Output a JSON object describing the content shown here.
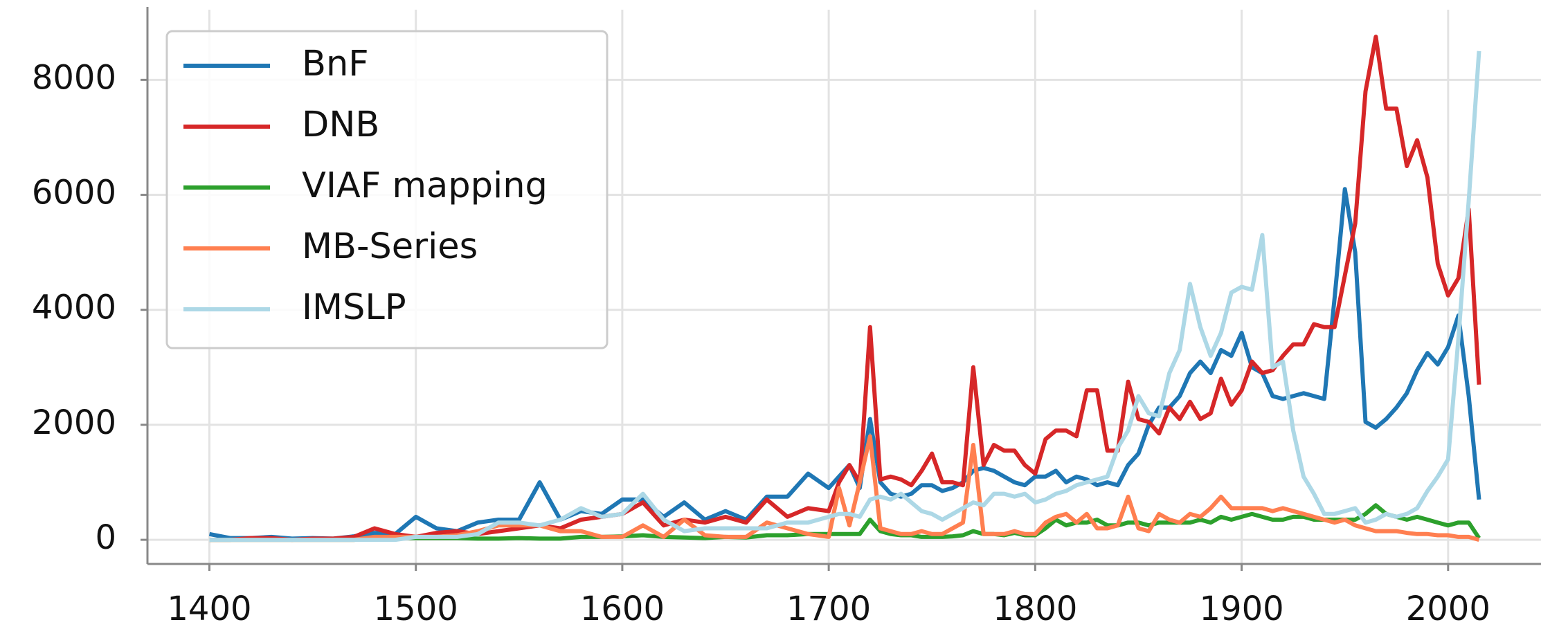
{
  "chart_data": {
    "type": "line",
    "x": [
      1400,
      1410,
      1420,
      1430,
      1440,
      1450,
      1460,
      1470,
      1480,
      1490,
      1500,
      1510,
      1520,
      1530,
      1540,
      1550,
      1560,
      1570,
      1580,
      1590,
      1600,
      1610,
      1620,
      1630,
      1640,
      1650,
      1660,
      1670,
      1680,
      1690,
      1700,
      1705,
      1710,
      1715,
      1720,
      1725,
      1730,
      1735,
      1740,
      1745,
      1750,
      1755,
      1760,
      1765,
      1770,
      1775,
      1780,
      1785,
      1790,
      1795,
      1800,
      1805,
      1810,
      1815,
      1820,
      1825,
      1830,
      1835,
      1840,
      1845,
      1850,
      1855,
      1860,
      1865,
      1870,
      1875,
      1880,
      1885,
      1890,
      1895,
      1900,
      1905,
      1910,
      1915,
      1920,
      1925,
      1930,
      1935,
      1940,
      1945,
      1950,
      1955,
      1960,
      1965,
      1970,
      1975,
      1980,
      1985,
      1990,
      1995,
      2000,
      2005,
      2010,
      2015
    ],
    "series": [
      {
        "name": "BnF",
        "color": "#1f77b4",
        "values": [
          100,
          30,
          30,
          50,
          20,
          30,
          20,
          60,
          120,
          100,
          400,
          200,
          150,
          300,
          350,
          350,
          1000,
          350,
          500,
          450,
          700,
          700,
          400,
          650,
          350,
          500,
          350,
          750,
          750,
          1150,
          900,
          1100,
          1300,
          900,
          2100,
          1000,
          800,
          750,
          800,
          950,
          950,
          850,
          900,
          1000,
          1200,
          1250,
          1200,
          1100,
          1000,
          950,
          1100,
          1100,
          1200,
          1000,
          1100,
          1050,
          950,
          1000,
          950,
          1300,
          1500,
          2000,
          2300,
          2300,
          2500,
          2900,
          3100,
          2900,
          3300,
          3200,
          3600,
          3000,
          2900,
          2500,
          2450,
          2500,
          2550,
          2500,
          2450,
          4200,
          6100,
          5000,
          2050,
          1950,
          2100,
          2300,
          2550,
          2950,
          3250,
          3050,
          3350,
          3900,
          2500,
          700
        ]
      },
      {
        "name": "DNB",
        "color": "#d62728",
        "values": [
          0,
          0,
          30,
          30,
          0,
          20,
          20,
          50,
          200,
          100,
          50,
          120,
          150,
          100,
          150,
          200,
          250,
          200,
          350,
          400,
          450,
          650,
          250,
          350,
          300,
          400,
          300,
          700,
          400,
          550,
          500,
          1000,
          1300,
          1000,
          3700,
          1050,
          1100,
          1050,
          950,
          1200,
          1500,
          1000,
          1000,
          950,
          3000,
          1300,
          1650,
          1550,
          1550,
          1300,
          1150,
          1750,
          1900,
          1900,
          1800,
          2600,
          2600,
          1550,
          1550,
          2750,
          2100,
          2050,
          1850,
          2300,
          2100,
          2400,
          2100,
          2200,
          2800,
          2350,
          2600,
          3100,
          2900,
          2950,
          3200,
          3400,
          3400,
          3750,
          3700,
          3700,
          4600,
          5500,
          7800,
          8750,
          7500,
          7500,
          6500,
          6950,
          6300,
          4800,
          4250,
          4550,
          5750,
          2700
        ]
      },
      {
        "name": "VIAF mapping",
        "color": "#2ca02c",
        "values": [
          0,
          0,
          0,
          0,
          0,
          0,
          0,
          0,
          20,
          30,
          30,
          30,
          30,
          20,
          20,
          30,
          20,
          20,
          50,
          50,
          60,
          80,
          50,
          40,
          30,
          50,
          40,
          80,
          80,
          100,
          100,
          100,
          100,
          100,
          350,
          150,
          100,
          80,
          80,
          50,
          50,
          50,
          60,
          80,
          150,
          100,
          100,
          80,
          120,
          80,
          80,
          200,
          350,
          250,
          300,
          300,
          350,
          250,
          250,
          300,
          300,
          250,
          300,
          300,
          300,
          300,
          350,
          300,
          400,
          350,
          400,
          450,
          400,
          350,
          350,
          400,
          400,
          350,
          350,
          350,
          350,
          350,
          450,
          600,
          450,
          400,
          350,
          400,
          350,
          300,
          250,
          300,
          300,
          30
        ]
      },
      {
        "name": "MB-Series",
        "color": "#ff7f50",
        "values": [
          0,
          0,
          0,
          0,
          0,
          0,
          0,
          0,
          50,
          50,
          50,
          50,
          80,
          150,
          250,
          250,
          250,
          150,
          150,
          50,
          50,
          250,
          50,
          350,
          80,
          50,
          50,
          300,
          200,
          100,
          50,
          900,
          250,
          1000,
          1800,
          200,
          150,
          100,
          100,
          150,
          100,
          100,
          200,
          300,
          1650,
          100,
          100,
          100,
          150,
          100,
          100,
          300,
          400,
          450,
          300,
          450,
          200,
          200,
          250,
          750,
          200,
          150,
          450,
          350,
          300,
          450,
          400,
          550,
          750,
          550,
          550,
          550,
          550,
          500,
          550,
          500,
          450,
          400,
          350,
          300,
          350,
          250,
          200,
          150,
          150,
          150,
          120,
          100,
          100,
          80,
          80,
          50,
          50,
          0
        ]
      },
      {
        "name": "IMSLP",
        "color": "#add8e6",
        "values": [
          0,
          0,
          0,
          0,
          0,
          0,
          0,
          0,
          0,
          0,
          50,
          50,
          50,
          100,
          300,
          300,
          250,
          350,
          550,
          400,
          450,
          800,
          350,
          150,
          200,
          200,
          200,
          200,
          300,
          300,
          400,
          450,
          450,
          400,
          700,
          750,
          700,
          800,
          650,
          500,
          450,
          350,
          450,
          550,
          650,
          600,
          800,
          800,
          750,
          800,
          650,
          700,
          800,
          850,
          950,
          1000,
          1050,
          1100,
          1600,
          1900,
          2500,
          2200,
          2150,
          2900,
          3300,
          4450,
          3700,
          3200,
          3600,
          4300,
          4400,
          4350,
          5300,
          3000,
          3100,
          1900,
          1100,
          800,
          450,
          450,
          500,
          550,
          300,
          350,
          450,
          400,
          450,
          550,
          850,
          1100,
          1400,
          3500,
          5900,
          8500
        ]
      }
    ],
    "xlim": [
      1370,
      2045
    ],
    "xticks": [
      1400,
      1500,
      1600,
      1700,
      1800,
      1900,
      2000
    ],
    "ylim": [
      -420,
      9220
    ],
    "yticks": [
      0,
      2000,
      4000,
      6000,
      8000
    ],
    "grid": true,
    "legend": "upper left"
  }
}
